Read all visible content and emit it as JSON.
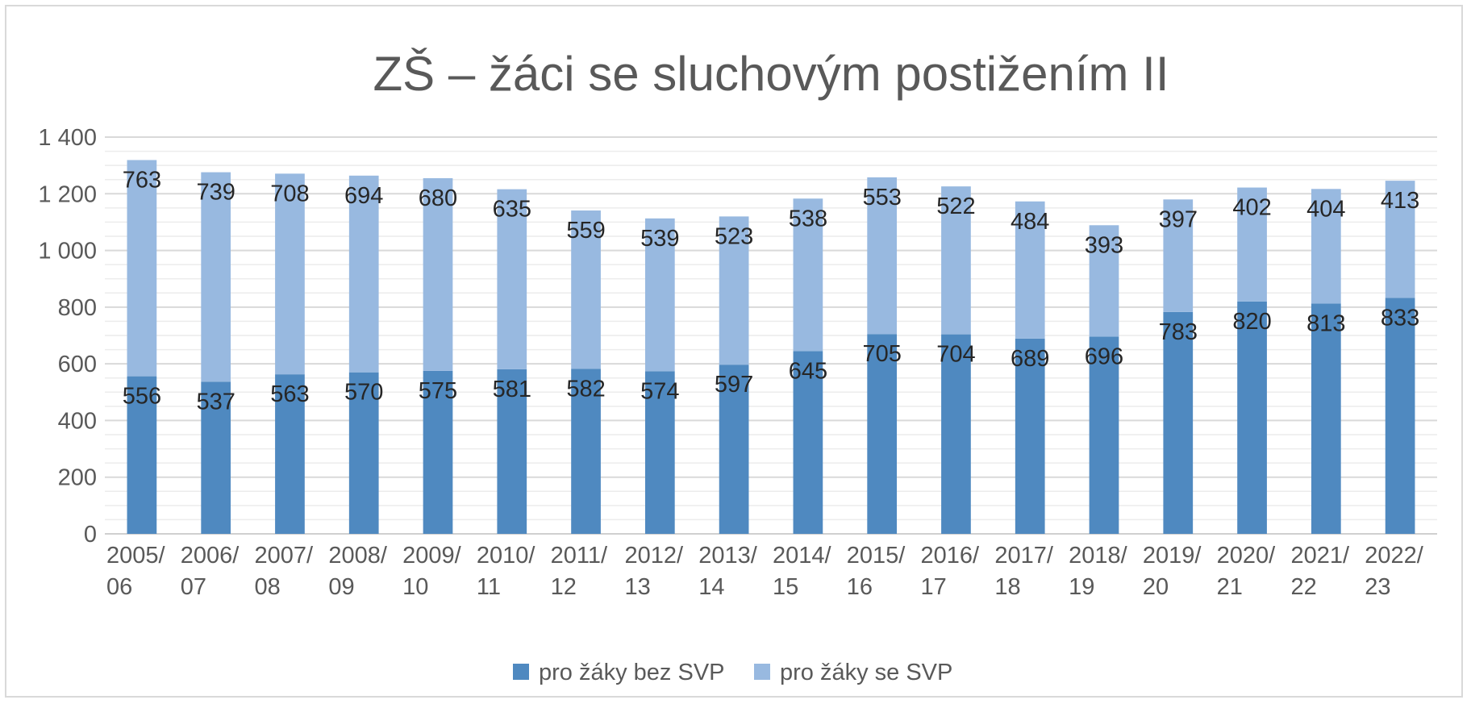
{
  "chart_data": {
    "type": "bar",
    "stacked": true,
    "title": "ZŠ – žáci se sluchovým postižením II",
    "categories": [
      "2005/06",
      "2006/07",
      "2007/08",
      "2008/09",
      "2009/10",
      "2010/11",
      "2011/12",
      "2012/13",
      "2013/14",
      "2014/15",
      "2015/16",
      "2016/17",
      "2017/18",
      "2018/19",
      "2019/20",
      "2020/21",
      "2021/22",
      "2022/23"
    ],
    "category_lines": [
      [
        "2005/",
        "06"
      ],
      [
        "2006/",
        "07"
      ],
      [
        "2007/",
        "08"
      ],
      [
        "2008/",
        "09"
      ],
      [
        "2009/",
        "10"
      ],
      [
        "2010/",
        "11"
      ],
      [
        "2011/",
        "12"
      ],
      [
        "2012/",
        "13"
      ],
      [
        "2013/",
        "14"
      ],
      [
        "2014/",
        "15"
      ],
      [
        "2015/",
        "16"
      ],
      [
        "2016/",
        "17"
      ],
      [
        "2017/",
        "18"
      ],
      [
        "2018/",
        "19"
      ],
      [
        "2019/",
        "20"
      ],
      [
        "2020/",
        "21"
      ],
      [
        "2021/",
        "22"
      ],
      [
        "2022/",
        "23"
      ]
    ],
    "series": [
      {
        "name": "pro žáky bez SVP",
        "color": "#4f89c0",
        "values": [
          556,
          537,
          563,
          570,
          575,
          581,
          582,
          574,
          597,
          645,
          705,
          704,
          689,
          696,
          783,
          820,
          813,
          833
        ]
      },
      {
        "name": "pro žáky se SVP",
        "color": "#98b9e0",
        "values": [
          763,
          739,
          708,
          694,
          680,
          635,
          559,
          539,
          523,
          538,
          553,
          522,
          484,
          393,
          397,
          402,
          404,
          413
        ]
      }
    ],
    "ylim": [
      0,
      1400
    ],
    "yticks": [
      0,
      200,
      400,
      600,
      800,
      1000,
      1200,
      1400
    ],
    "ytick_labels": [
      "0",
      "200",
      "400",
      "600",
      "800",
      "1 000",
      "1 200",
      "1 400"
    ],
    "grid": true,
    "minor_grid": true,
    "legend_position": "bottom",
    "xlabel": "",
    "ylabel": ""
  }
}
